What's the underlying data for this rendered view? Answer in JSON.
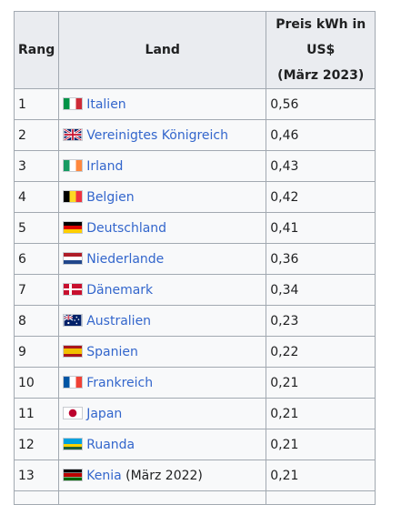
{
  "table": {
    "headers": {
      "rank": "Rang",
      "country": "Land",
      "price_line1": "Preis kWh in US$",
      "price_line2": "(März 2023)"
    },
    "rows": [
      {
        "rank": "1",
        "country": "Italien",
        "note": "",
        "price": "0,56",
        "flag": "flag-italy-icon"
      },
      {
        "rank": "2",
        "country": "Vereinigtes Königreich",
        "note": "",
        "price": "0,46",
        "flag": "flag-uk-icon"
      },
      {
        "rank": "3",
        "country": "Irland",
        "note": "",
        "price": "0,43",
        "flag": "flag-ireland-icon"
      },
      {
        "rank": "4",
        "country": "Belgien",
        "note": "",
        "price": "0,42",
        "flag": "flag-belgium-icon"
      },
      {
        "rank": "5",
        "country": "Deutschland",
        "note": "",
        "price": "0,41",
        "flag": "flag-germany-icon"
      },
      {
        "rank": "6",
        "country": "Niederlande",
        "note": "",
        "price": "0,36",
        "flag": "flag-netherlands-icon"
      },
      {
        "rank": "7",
        "country": "Dänemark",
        "note": "",
        "price": "0,34",
        "flag": "flag-denmark-icon"
      },
      {
        "rank": "8",
        "country": "Australien",
        "note": "",
        "price": "0,23",
        "flag": "flag-australia-icon"
      },
      {
        "rank": "9",
        "country": "Spanien",
        "note": "",
        "price": "0,22",
        "flag": "flag-spain-icon"
      },
      {
        "rank": "10",
        "country": "Frankreich",
        "note": "",
        "price": "0,21",
        "flag": "flag-france-icon"
      },
      {
        "rank": "11",
        "country": "Japan",
        "note": "",
        "price": "0,21",
        "flag": "flag-japan-icon"
      },
      {
        "rank": "12",
        "country": "Ruanda",
        "note": "",
        "price": "0,21",
        "flag": "flag-rwanda-icon"
      },
      {
        "rank": "13",
        "country": "Kenia",
        "note": " (März 2022)",
        "price": "0,21",
        "flag": "flag-kenya-icon"
      }
    ]
  },
  "colors": {
    "link": "#3366cc",
    "header_bg": "#eaecf0",
    "cell_bg": "#f8f9fa",
    "border": "#a2a9b1"
  }
}
